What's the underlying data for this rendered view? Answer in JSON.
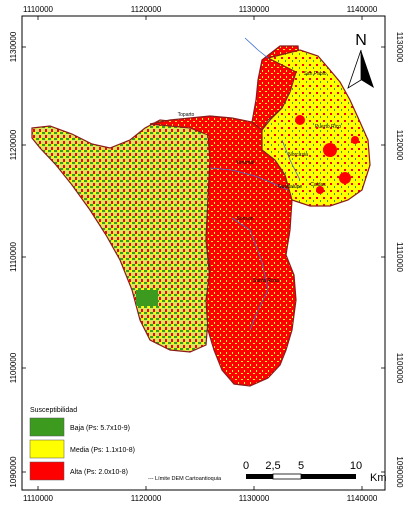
{
  "axes": {
    "x_ticks_top": [
      "1110000",
      "1120000",
      "1130000",
      "1140000"
    ],
    "x_ticks_bottom": [
      "1110000",
      "1120000",
      "1130000",
      "1140000"
    ],
    "y_ticks_left": [
      "1130000",
      "1120000",
      "1110000",
      "1100000",
      "1090000"
    ],
    "y_ticks_right": [
      "1130000",
      "1120000",
      "1110000",
      "1100000",
      "1090000"
    ]
  },
  "north_arrow": {
    "label": "N"
  },
  "places": [
    "Toparto",
    "San Pablo",
    "Yarumal",
    "Norcasia",
    "Puerto Rico",
    "Caldas",
    "Sonson",
    "Santa Rosa",
    "Guadalupe"
  ],
  "legend": {
    "title": "Susceptibilidad",
    "items": [
      {
        "label": "Baja (Ps: 5.7x10-9)",
        "color": "#3c9b1e"
      },
      {
        "label": "Media (Ps: 1.1x10-8)",
        "color": "#ffff00"
      },
      {
        "label": "Alta  (Ps: 2.0x10-8)",
        "color": "#ff0000"
      }
    ],
    "boundary_label": "--- Límite DEM Cartoantioquia"
  },
  "scale_bar": {
    "labels": [
      "0",
      "2,5",
      "5",
      "10"
    ],
    "unit": "Km"
  },
  "colors": {
    "low": "#3c9b1e",
    "medium": "#ffff00",
    "high": "#ff0000",
    "boundary": "#8b1a1a",
    "river": "#3a6bd6"
  }
}
